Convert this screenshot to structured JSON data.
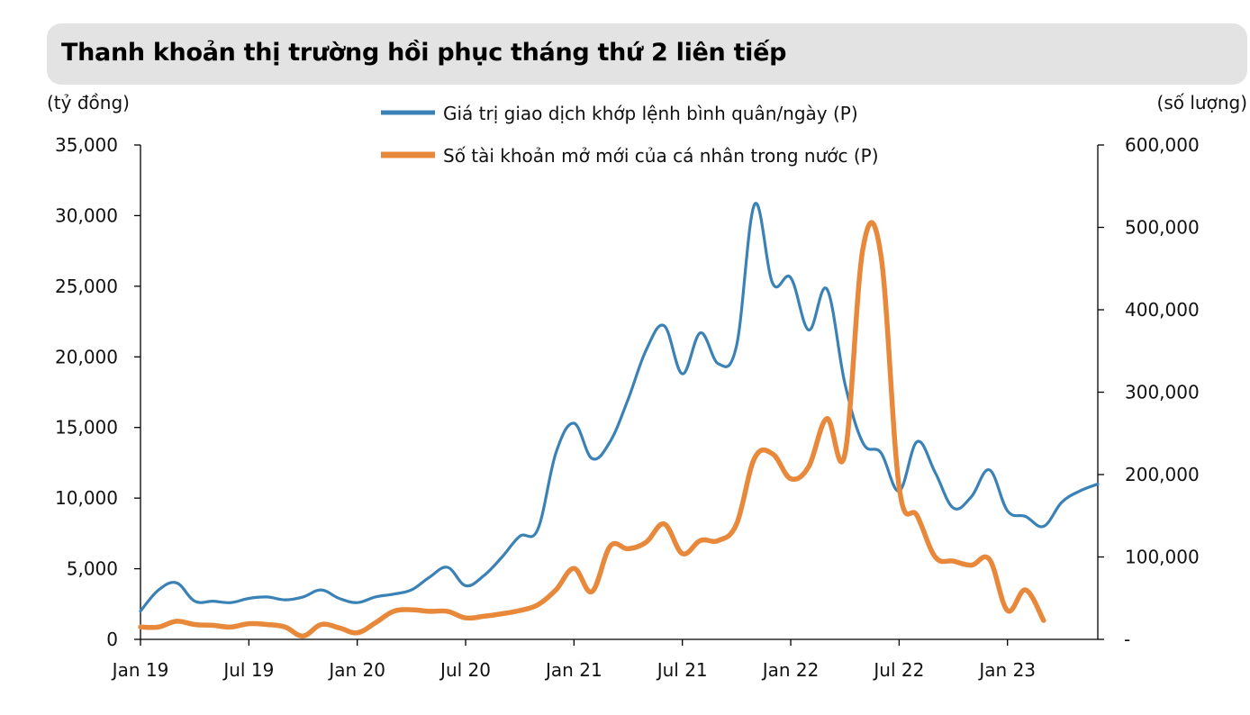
{
  "header": {
    "title": "Thanh khoản thị trường hồi phục tháng thứ 2 liên tiếp"
  },
  "colors": {
    "series_blue": "#3a82b6",
    "series_orange": "#e8883a",
    "axis": "#000000",
    "title_bg": "#e3e3e3"
  },
  "chart_data": {
    "type": "line",
    "title": "Thanh khoản thị trường hồi phục tháng thứ 2 liên tiếp",
    "left_unit": "(tỷ đồng)",
    "right_unit": "(số lượng)",
    "x_tick_labels": [
      "Jan 19",
      "Jul 19",
      "Jan 20",
      "Jul 20",
      "Jan 21",
      "Jul 21",
      "Jan 22",
      "Jul 22",
      "Jan 23"
    ],
    "left_axis": {
      "min": 0,
      "max": 35000,
      "ticks": [
        "0",
        "5,000",
        "10,000",
        "15,000",
        "20,000",
        "25,000",
        "30,000",
        "35,000"
      ]
    },
    "right_axis": {
      "min": 0,
      "max": 600000,
      "ticks": [
        "-",
        "100,000",
        "200,000",
        "300,000",
        "400,000",
        "500,000",
        "600,000"
      ]
    },
    "legend": [
      "Giá trị giao dịch khớp lệnh bình quân/ngày (P)",
      "Số tài khoản mở mới của cá nhân trong nước (P)"
    ],
    "series": [
      {
        "name": "Giá trị giao dịch khớp lệnh bình quân/ngày (P)",
        "axis": "left",
        "x": [
          0,
          1,
          2,
          3,
          4,
          5,
          6,
          7,
          8,
          9,
          10,
          11,
          12,
          13,
          14,
          15,
          16,
          17,
          18,
          19,
          20,
          21,
          22,
          23,
          24,
          25,
          26,
          27,
          28,
          29,
          30,
          31,
          32,
          33,
          34,
          35,
          36,
          37,
          38,
          39,
          40,
          41,
          42,
          43,
          44,
          45,
          46,
          47,
          48,
          49,
          50,
          51,
          52,
          53
        ],
        "values": [
          2000,
          3500,
          4000,
          2700,
          2700,
          2600,
          2900,
          3000,
          2800,
          3000,
          3500,
          2900,
          2600,
          3000,
          3200,
          3500,
          4400,
          5100,
          3800,
          4500,
          5800,
          7300,
          7800,
          13200,
          15300,
          12800,
          14000,
          17000,
          20500,
          22200,
          18800,
          21700,
          19500,
          20800,
          30800,
          25200,
          25600,
          21900,
          24800,
          18100,
          13900,
          13200,
          10500,
          14000,
          11800,
          9300,
          10100,
          12000,
          9100,
          8700,
          8000,
          9700,
          10500,
          11000
        ]
      },
      {
        "name": "Số tài khoản mở mới của cá nhân trong nước (P)",
        "axis": "right",
        "x": [
          0,
          1,
          2,
          3,
          4,
          5,
          6,
          7,
          8,
          9,
          10,
          11,
          12,
          13,
          14,
          15,
          16,
          17,
          18,
          19,
          20,
          21,
          22,
          23,
          24,
          25,
          26,
          27,
          28,
          29,
          30,
          31,
          32,
          33,
          34,
          35,
          36,
          37,
          38,
          39,
          40,
          41,
          42,
          43,
          44,
          45,
          46,
          47,
          48,
          49,
          50
        ],
        "values": [
          15000,
          15000,
          22000,
          18000,
          17000,
          15000,
          19000,
          18000,
          15000,
          4000,
          18000,
          14000,
          8000,
          20000,
          34000,
          36000,
          34000,
          34000,
          26000,
          28000,
          31000,
          35000,
          42000,
          60000,
          86000,
          58000,
          113000,
          110000,
          118000,
          140000,
          104000,
          120000,
          120000,
          140000,
          220000,
          225000,
          195000,
          210000,
          268000,
          225000,
          475000,
          465000,
          185000,
          150000,
          100000,
          95000,
          90000,
          97000,
          35000,
          60000,
          23000
        ]
      }
    ]
  }
}
